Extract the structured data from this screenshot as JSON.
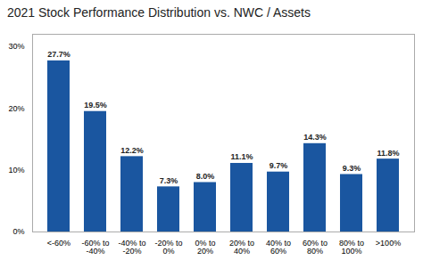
{
  "chart_data": {
    "type": "bar",
    "title": "2021 Stock Performance Distribution vs. NWC / Assets",
    "categories": [
      "<-60%",
      "-60% to\n-40%",
      "-40% to\n-20%",
      "-20% to\n0%",
      "0% to\n20%",
      "20% to\n40%",
      "40% to\n60%",
      "60% to\n80%",
      "80% to\n100%",
      ">100%"
    ],
    "values": [
      27.7,
      19.5,
      12.2,
      7.3,
      8.0,
      11.1,
      9.7,
      14.3,
      9.3,
      11.8
    ],
    "value_labels": [
      "27.7%",
      "19.5%",
      "12.2%",
      "7.3%",
      "8.0%",
      "11.1%",
      "9.7%",
      "14.3%",
      "9.3%",
      "11.8%"
    ],
    "data_labels": true,
    "color": "#1a56a0",
    "ylim": [
      0,
      32
    ],
    "yticks": [
      {
        "value": 0,
        "label": "0%"
      },
      {
        "value": 10,
        "label": "10%"
      },
      {
        "value": 20,
        "label": "20%"
      },
      {
        "value": 30,
        "label": "30%"
      }
    ],
    "grid": false
  }
}
